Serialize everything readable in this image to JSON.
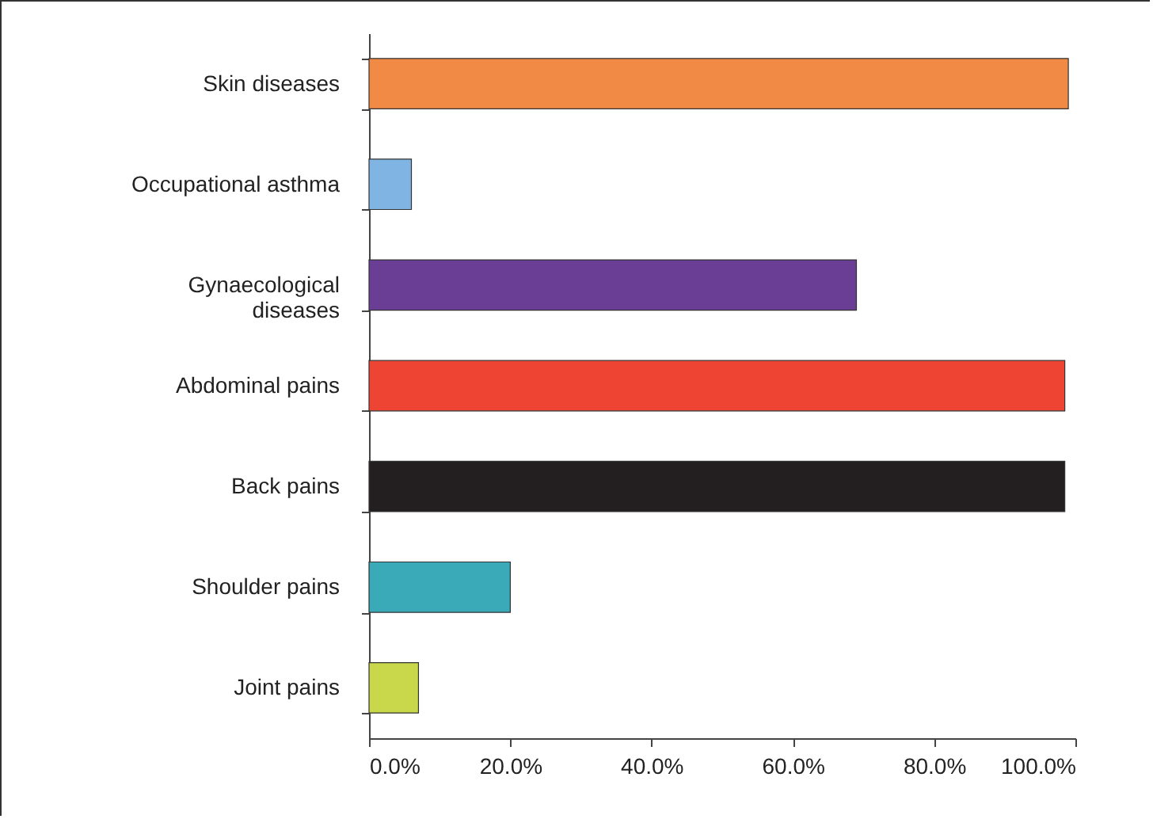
{
  "chart_data": {
    "type": "bar",
    "orientation": "horizontal",
    "categories": [
      "Skin diseases",
      "Occupational asthma",
      "Gynaecological diseases",
      "Abdominal pains",
      "Back pains",
      "Shoulder pains",
      "Joint pains"
    ],
    "values": [
      99,
      6,
      69,
      98.5,
      98.5,
      20,
      7
    ],
    "colors": [
      "#f08a45",
      "#80b4e2",
      "#6b3e96",
      "#ee4433",
      "#231f20",
      "#3aa9b8",
      "#c8d84a"
    ],
    "xlim": [
      0,
      100
    ],
    "xticks": [
      {
        "value": 0,
        "label": "0.0%"
      },
      {
        "value": 20,
        "label": "20.0%"
      },
      {
        "value": 40,
        "label": "40.0%"
      },
      {
        "value": 60,
        "label": "60.0%"
      },
      {
        "value": 80,
        "label": "80.0%"
      },
      {
        "value": 100,
        "label": "100.0%"
      }
    ],
    "grid": false
  }
}
